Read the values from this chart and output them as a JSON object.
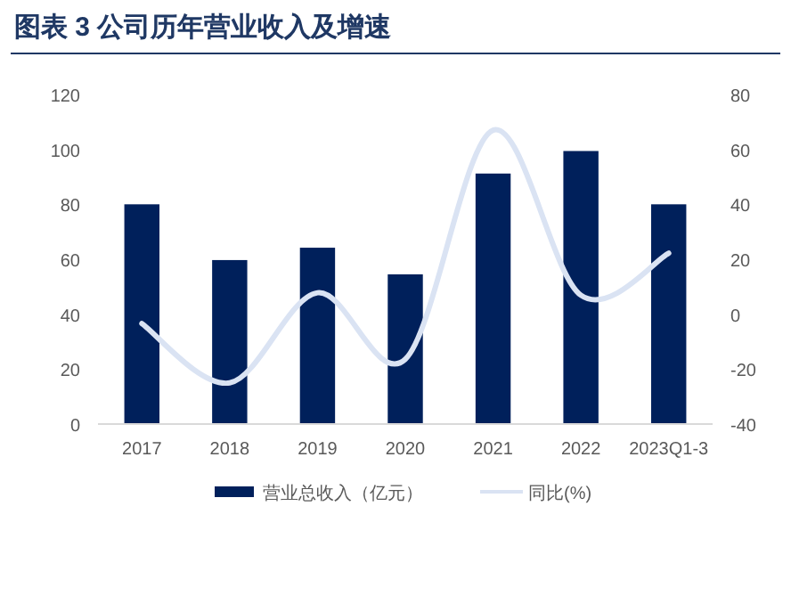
{
  "chart_data": {
    "type": "bar",
    "title": "图表 3   公司历年营业收入及增速",
    "categories": [
      "2017",
      "2018",
      "2019",
      "2020",
      "2021",
      "2022",
      "2023Q1-3"
    ],
    "series": [
      {
        "name": "营业总收入（亿元）",
        "color": "#00205b",
        "values": [
          80,
          59.7,
          64.2,
          54.5,
          91.2,
          99.4,
          80
        ]
      },
      {
        "name": "同比(%)",
        "type": "line",
        "axis": "y2",
        "color": "#dae3f3",
        "values": [
          -3.4,
          -25,
          7.8,
          -16.4,
          67,
          6.9,
          22.2
        ]
      }
    ],
    "ylim": [
      0,
      120
    ],
    "yticks": [
      0,
      20,
      40,
      60,
      80,
      100,
      120
    ],
    "y2lim": [
      -40,
      80
    ],
    "y2ticks": [
      -40,
      -20,
      0,
      20,
      40,
      60,
      80
    ],
    "legend": "bottom",
    "grid": false
  }
}
